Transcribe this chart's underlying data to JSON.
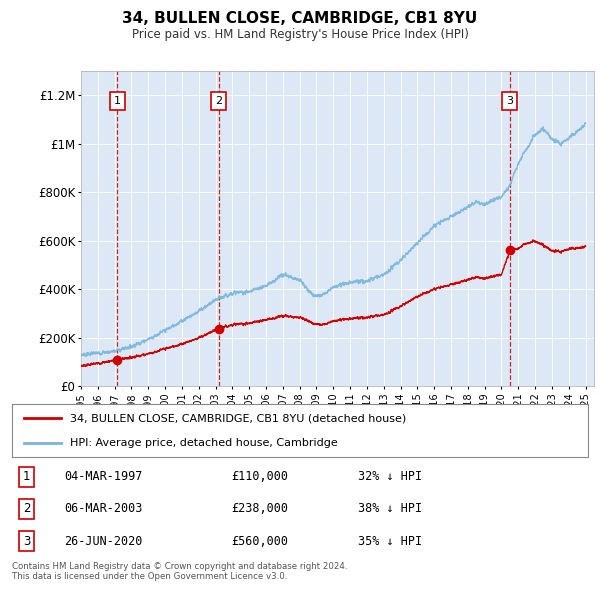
{
  "title": "34, BULLEN CLOSE, CAMBRIDGE, CB1 8YU",
  "subtitle": "Price paid vs. HM Land Registry's House Price Index (HPI)",
  "plot_bg_color": "#dce8f5",
  "hpi_color": "#7ab4d8",
  "price_color": "#cc0000",
  "transactions": [
    {
      "num": 1,
      "date_str": "04-MAR-1997",
      "year": 1997.17,
      "price": 110000,
      "pct": "32% ↓ HPI"
    },
    {
      "num": 2,
      "date_str": "06-MAR-2003",
      "year": 2003.18,
      "price": 238000,
      "pct": "38% ↓ HPI"
    },
    {
      "num": 3,
      "date_str": "26-JUN-2020",
      "year": 2020.49,
      "price": 560000,
      "pct": "35% ↓ HPI"
    }
  ],
  "legend_line1": "34, BULLEN CLOSE, CAMBRIDGE, CB1 8YU (detached house)",
  "legend_line2": "HPI: Average price, detached house, Cambridge",
  "footer": "Contains HM Land Registry data © Crown copyright and database right 2024.\nThis data is licensed under the Open Government Licence v3.0.",
  "ylim": [
    0,
    1300000
  ],
  "xlim_start": 1995.0,
  "xlim_end": 2025.5,
  "yticks": [
    0,
    200000,
    400000,
    600000,
    800000,
    1000000,
    1200000
  ],
  "ytick_labels": [
    "£0",
    "£200K",
    "£400K",
    "£600K",
    "£800K",
    "£1M",
    "£1.2M"
  ],
  "xticks": [
    1995,
    1996,
    1997,
    1998,
    1999,
    2000,
    2001,
    2002,
    2003,
    2004,
    2005,
    2006,
    2007,
    2008,
    2009,
    2010,
    2011,
    2012,
    2013,
    2014,
    2015,
    2016,
    2017,
    2018,
    2019,
    2020,
    2021,
    2022,
    2023,
    2024,
    2025
  ],
  "hpi_anchor_points": [
    [
      1995.0,
      130000
    ],
    [
      1997.0,
      145000
    ],
    [
      1998.0,
      165000
    ],
    [
      1999.0,
      195000
    ],
    [
      2000.0,
      230000
    ],
    [
      2001.0,
      270000
    ],
    [
      2002.0,
      310000
    ],
    [
      2003.0,
      355000
    ],
    [
      2004.0,
      385000
    ],
    [
      2005.0,
      390000
    ],
    [
      2006.0,
      415000
    ],
    [
      2007.0,
      460000
    ],
    [
      2008.0,
      440000
    ],
    [
      2008.5,
      395000
    ],
    [
      2009.0,
      370000
    ],
    [
      2009.5,
      385000
    ],
    [
      2010.0,
      410000
    ],
    [
      2011.0,
      430000
    ],
    [
      2012.0,
      435000
    ],
    [
      2013.0,
      460000
    ],
    [
      2014.0,
      520000
    ],
    [
      2015.0,
      590000
    ],
    [
      2016.0,
      660000
    ],
    [
      2017.0,
      700000
    ],
    [
      2017.5,
      720000
    ],
    [
      2018.0,
      740000
    ],
    [
      2018.5,
      760000
    ],
    [
      2019.0,
      750000
    ],
    [
      2019.5,
      770000
    ],
    [
      2020.0,
      780000
    ],
    [
      2020.5,
      830000
    ],
    [
      2021.0,
      920000
    ],
    [
      2021.5,
      980000
    ],
    [
      2022.0,
      1040000
    ],
    [
      2022.5,
      1060000
    ],
    [
      2023.0,
      1020000
    ],
    [
      2023.5,
      1000000
    ],
    [
      2024.0,
      1020000
    ],
    [
      2024.5,
      1050000
    ],
    [
      2025.0,
      1080000
    ]
  ],
  "price_anchor_points": [
    [
      1995.0,
      85000
    ],
    [
      1996.0,
      95000
    ],
    [
      1997.17,
      110000
    ],
    [
      1998.0,
      120000
    ],
    [
      1999.0,
      135000
    ],
    [
      2000.0,
      155000
    ],
    [
      2001.0,
      175000
    ],
    [
      2002.0,
      200000
    ],
    [
      2003.18,
      238000
    ],
    [
      2004.0,
      255000
    ],
    [
      2005.0,
      260000
    ],
    [
      2006.0,
      275000
    ],
    [
      2007.0,
      290000
    ],
    [
      2008.0,
      285000
    ],
    [
      2008.5,
      270000
    ],
    [
      2009.0,
      255000
    ],
    [
      2009.5,
      258000
    ],
    [
      2010.0,
      270000
    ],
    [
      2011.0,
      280000
    ],
    [
      2012.0,
      285000
    ],
    [
      2013.0,
      295000
    ],
    [
      2014.0,
      330000
    ],
    [
      2015.0,
      370000
    ],
    [
      2016.0,
      400000
    ],
    [
      2017.0,
      420000
    ],
    [
      2017.5,
      430000
    ],
    [
      2018.0,
      440000
    ],
    [
      2018.5,
      450000
    ],
    [
      2019.0,
      445000
    ],
    [
      2019.5,
      455000
    ],
    [
      2020.0,
      460000
    ],
    [
      2020.49,
      560000
    ],
    [
      2021.0,
      570000
    ],
    [
      2021.5,
      590000
    ],
    [
      2022.0,
      600000
    ],
    [
      2022.5,
      580000
    ],
    [
      2023.0,
      560000
    ],
    [
      2023.5,
      555000
    ],
    [
      2024.0,
      565000
    ],
    [
      2024.5,
      570000
    ],
    [
      2025.0,
      575000
    ]
  ]
}
